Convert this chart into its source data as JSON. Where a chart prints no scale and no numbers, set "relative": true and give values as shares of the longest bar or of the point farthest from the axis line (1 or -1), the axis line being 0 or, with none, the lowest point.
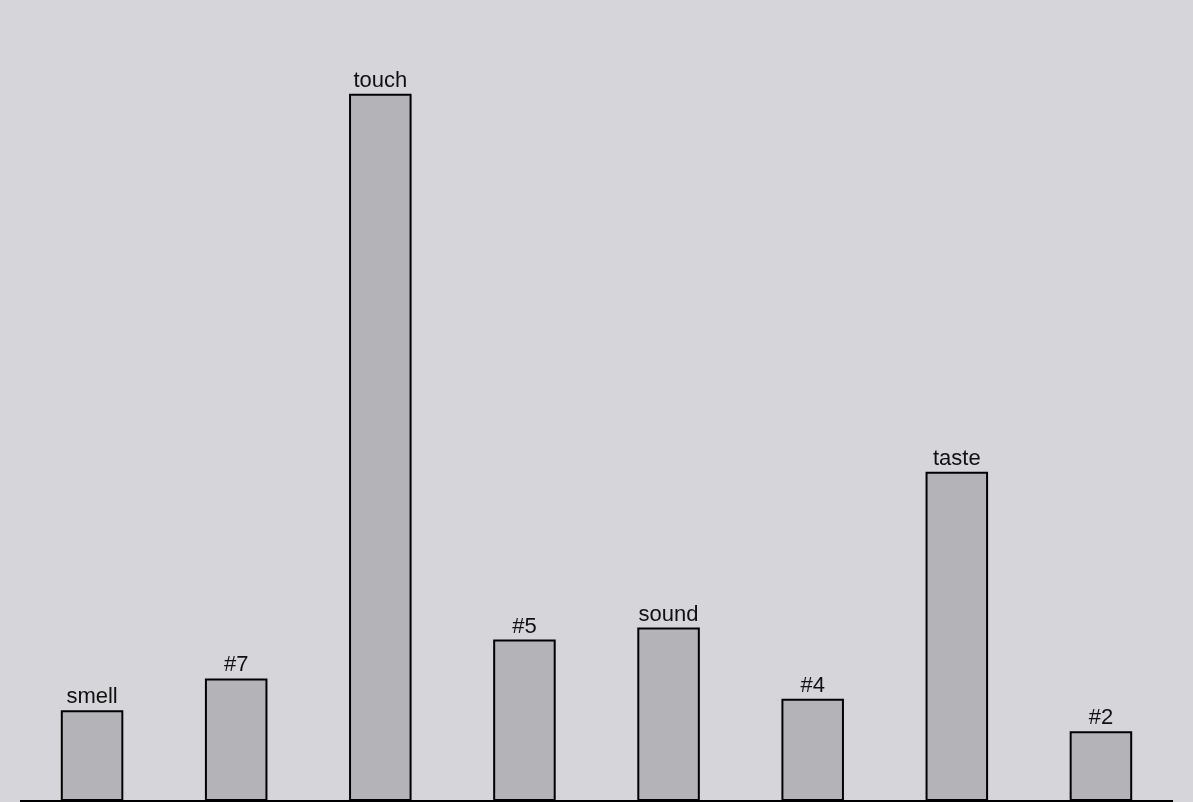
{
  "chart_data": {
    "type": "bar",
    "relative": true,
    "categories": [
      "smell",
      "#7",
      "touch",
      "#5",
      "sound",
      "#4",
      "taste",
      "#2"
    ],
    "values": [
      0.126,
      0.171,
      1,
      0.226,
      0.243,
      0.142,
      0.464,
      0.096
    ],
    "color": "#b4b4b8"
  }
}
